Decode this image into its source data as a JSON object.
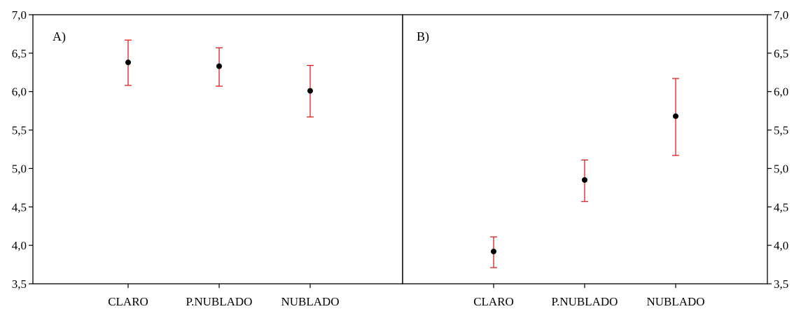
{
  "chart_data": [
    {
      "type": "scatter",
      "panel_label": "A)",
      "categories": [
        "CLARO",
        "P.NUBLADO",
        "NUBLADO"
      ],
      "values": [
        6.38,
        6.33,
        6.01
      ],
      "error_low": [
        6.08,
        6.07,
        5.67
      ],
      "error_high": [
        6.67,
        6.57,
        6.34
      ],
      "ylim": [
        3.5,
        7.0
      ],
      "yticks": [
        "3,5",
        "4,0",
        "4,5",
        "5,0",
        "5,5",
        "6,0",
        "6,5",
        "7,0"
      ],
      "yaxis_side": "left",
      "marker_color": "#000000",
      "error_color": "#e02020",
      "grid": false
    },
    {
      "type": "scatter",
      "panel_label": "B)",
      "categories": [
        "CLARO",
        "P.NUBLADO",
        "NUBLADO"
      ],
      "values": [
        3.92,
        4.85,
        5.68
      ],
      "error_low": [
        3.71,
        4.57,
        5.17
      ],
      "error_high": [
        4.11,
        5.11,
        6.17
      ],
      "ylim": [
        3.5,
        7.0
      ],
      "yticks": [
        "3,5",
        "4,0",
        "4,5",
        "5,0",
        "5,5",
        "6,0",
        "6,5",
        "7,0"
      ],
      "yaxis_side": "right",
      "marker_color": "#000000",
      "error_color": "#e02020",
      "grid": false
    }
  ]
}
